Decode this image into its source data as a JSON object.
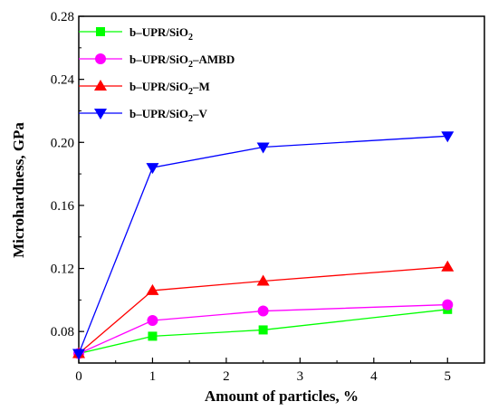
{
  "chart_data": {
    "type": "line",
    "xlabel": "Amount of particles, %",
    "ylabel": "Microhardness, GPa",
    "xlim": [
      0,
      5.5
    ],
    "ylim": [
      0.06,
      0.28
    ],
    "xticks": [
      "0",
      "1",
      "2",
      "3",
      "4",
      "5"
    ],
    "yticks": [
      "0.08",
      "0.12",
      "0.16",
      "0.20",
      "0.24",
      "0.28"
    ],
    "grid": false,
    "legend_position": "top-left",
    "x": [
      0,
      1,
      2.5,
      5
    ],
    "series": [
      {
        "name": "b–UPR/SiO2",
        "label_main": "b–UPR/SiO",
        "label_sub": "2",
        "label_tail": "",
        "color": "#00ff00",
        "marker": "square",
        "values": [
          0.066,
          0.077,
          0.081,
          0.094
        ]
      },
      {
        "name": "b–UPR/SiO2–AMBD",
        "label_main": "b–UPR/SiO",
        "label_sub": "2",
        "label_tail": "–AMBD",
        "color": "#ff00ff",
        "marker": "circle",
        "values": [
          0.066,
          0.087,
          0.093,
          0.097
        ]
      },
      {
        "name": "b–UPR/SiO2–M",
        "label_main": "b–UPR/SiO",
        "label_sub": "2",
        "label_tail": "–M",
        "color": "#ff0000",
        "marker": "triangle-up",
        "values": [
          0.066,
          0.106,
          0.112,
          0.121
        ]
      },
      {
        "name": "b–UPR/SiO2–V",
        "label_main": "b–UPR/SiO",
        "label_sub": "2",
        "label_tail": "–V",
        "color": "#0000ff",
        "marker": "triangle-down",
        "values": [
          0.066,
          0.184,
          0.197,
          0.204
        ]
      }
    ]
  }
}
